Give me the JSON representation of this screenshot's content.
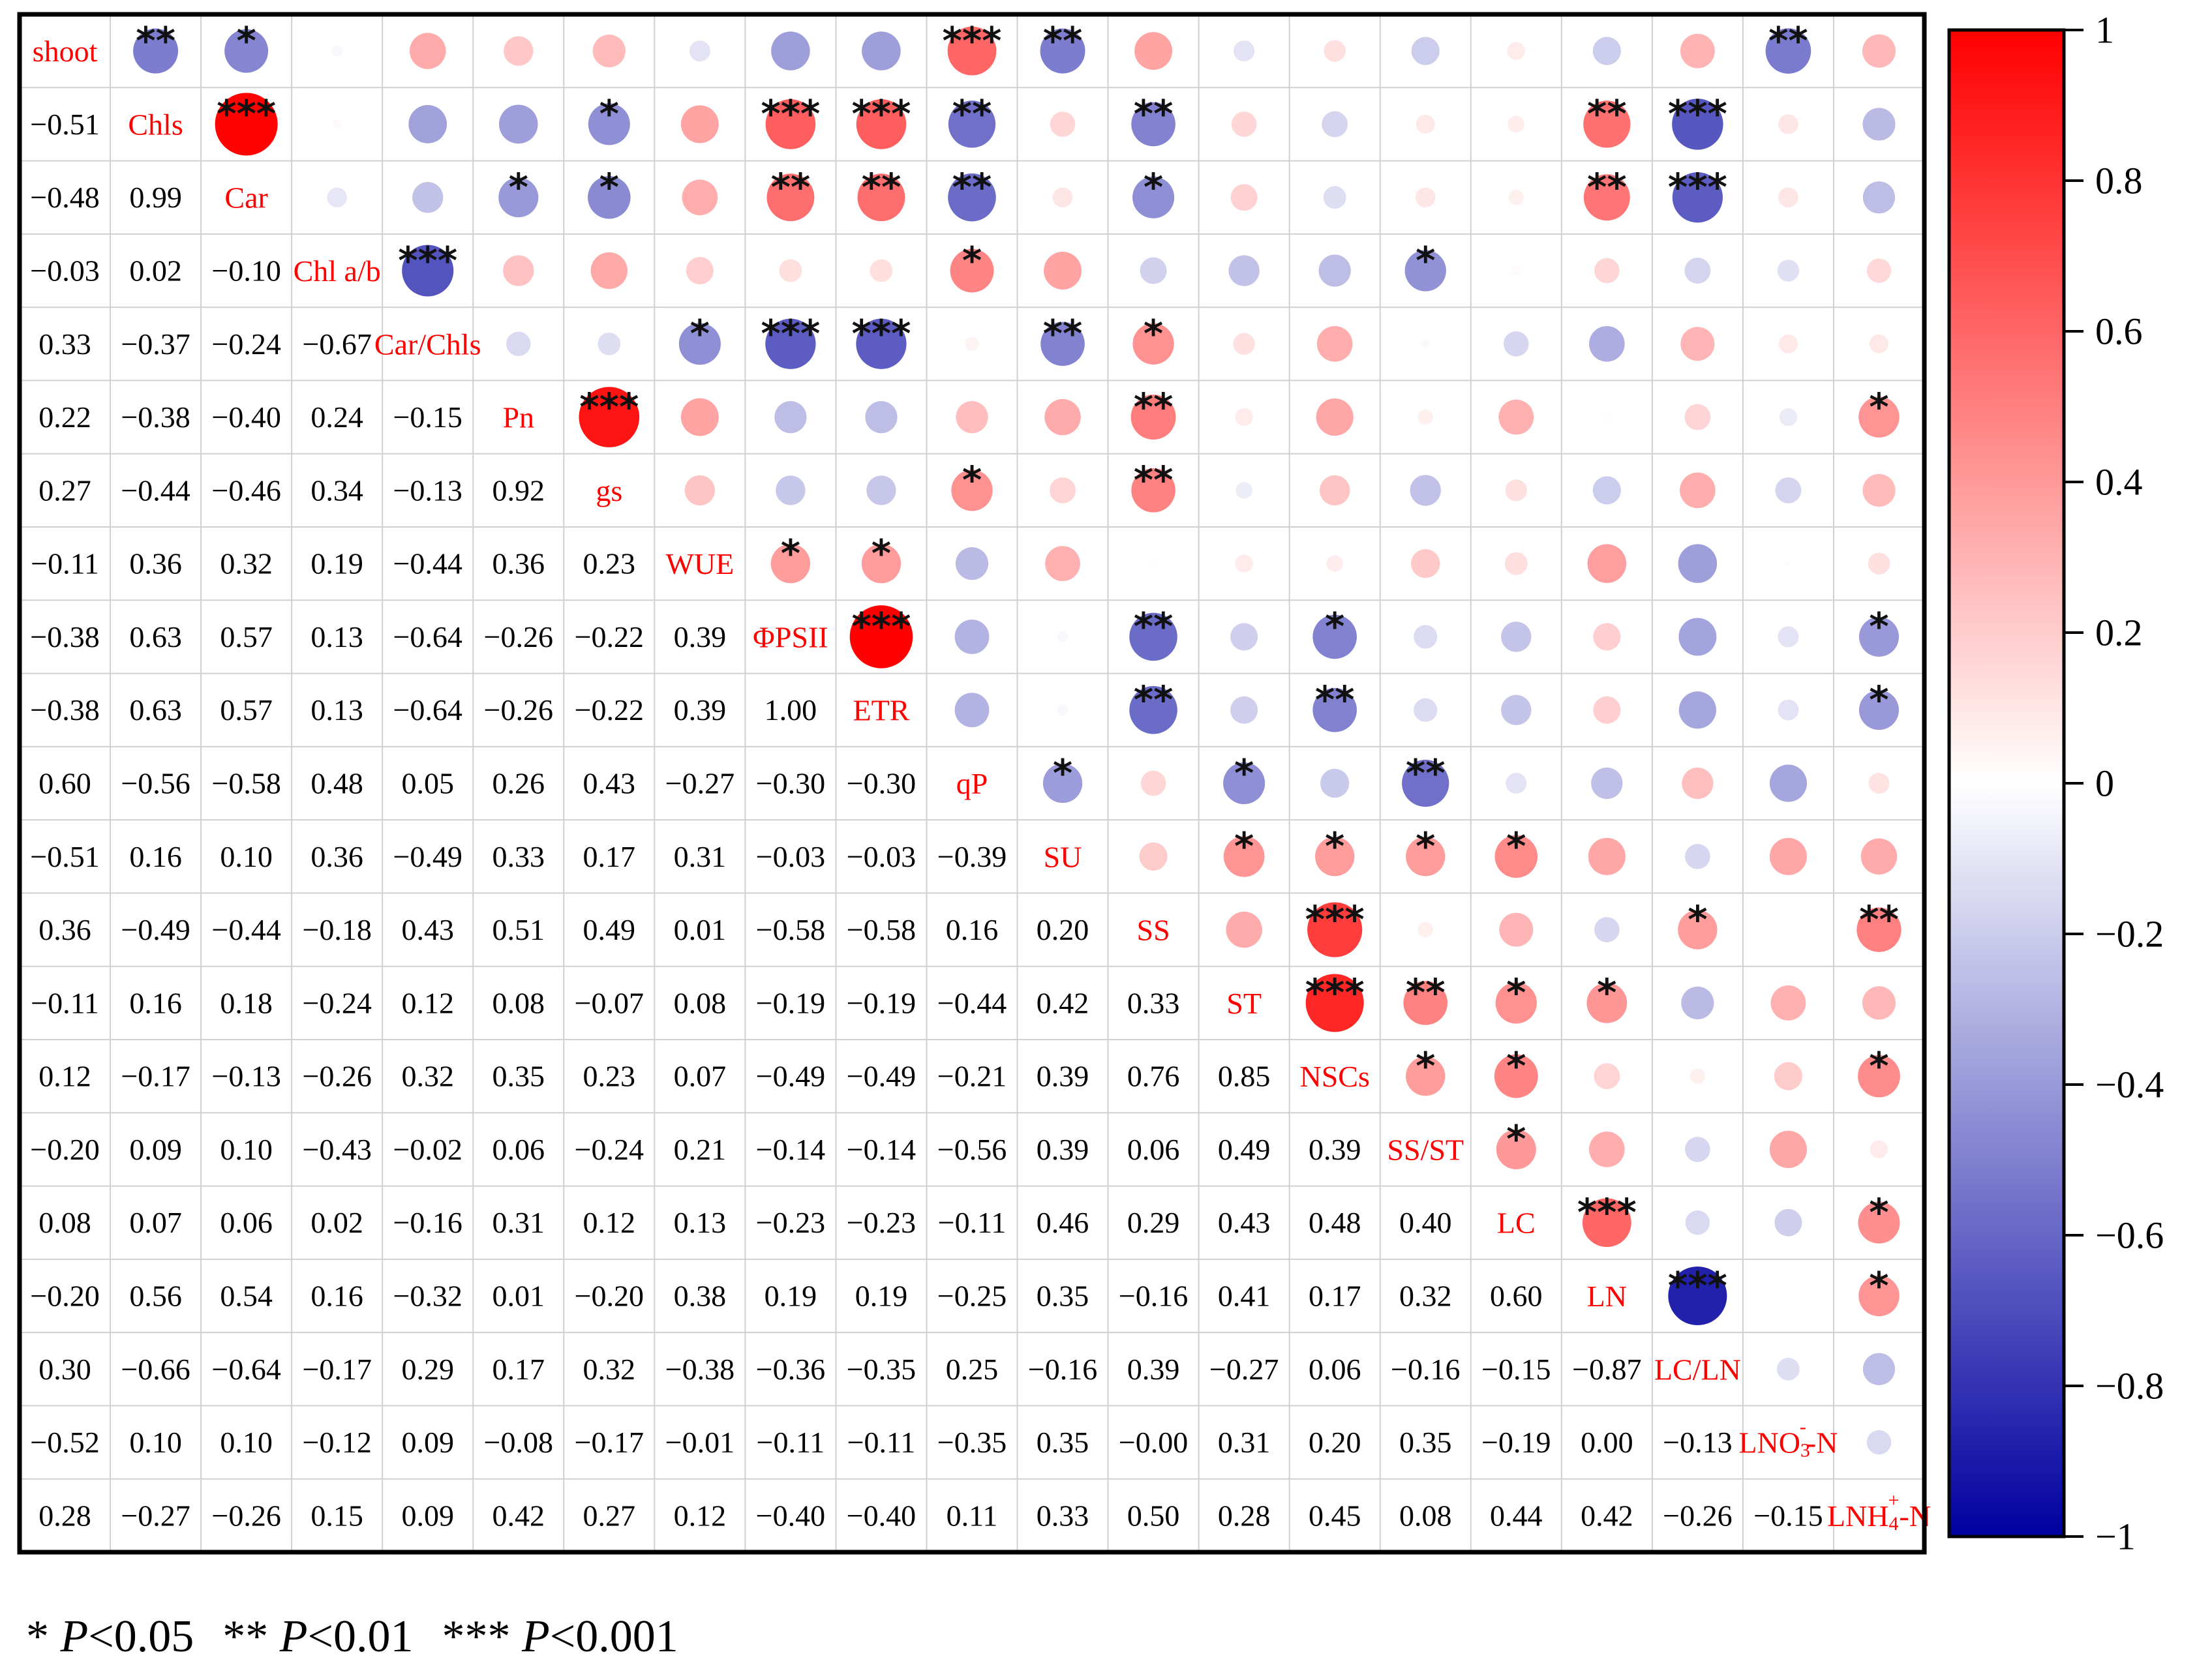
{
  "chart_data": {
    "type": "heatmap",
    "title": "",
    "variables": [
      "shoot",
      "Chls",
      "Car",
      "Chl a/b",
      "Car/Chls",
      "Pn",
      "gs",
      "WUE",
      "ΦPSII",
      "ETR",
      "qP",
      "SU",
      "SS",
      "ST",
      "NSCs",
      "SS/ST",
      "LC",
      "LN",
      "LC/LN",
      "LNO3⁻-N",
      "LNH4⁺-N"
    ],
    "variable_labels": [
      {
        "main": "shoot"
      },
      {
        "main": "Chls"
      },
      {
        "main": "Car"
      },
      {
        "main": "Chl a/b"
      },
      {
        "main": "Car/Chls"
      },
      {
        "main": "Pn"
      },
      {
        "main": "gs"
      },
      {
        "main": "WUE"
      },
      {
        "main": "ΦPSII"
      },
      {
        "main": "ETR"
      },
      {
        "main": "qP"
      },
      {
        "main": "SU"
      },
      {
        "main": "SS"
      },
      {
        "main": "ST"
      },
      {
        "main": "NSCs"
      },
      {
        "main": "SS/ST"
      },
      {
        "main": "LC"
      },
      {
        "main": "LN"
      },
      {
        "main": "LC/LN"
      },
      {
        "main": "LNO",
        "sub": "3",
        "sup": "-",
        "tail": "-N"
      },
      {
        "main": "LNH",
        "sub": "4",
        "sup": "+",
        "tail": "-N"
      }
    ],
    "lower_values": [
      [],
      [
        "−0.51"
      ],
      [
        "−0.48",
        "0.99"
      ],
      [
        "−0.03",
        "0.02",
        "−0.10"
      ],
      [
        "0.33",
        "−0.37",
        "−0.24",
        "−0.67"
      ],
      [
        "0.22",
        "−0.38",
        "−0.40",
        "0.24",
        "−0.15"
      ],
      [
        "0.27",
        "−0.44",
        "−0.46",
        "0.34",
        "−0.13",
        "0.92"
      ],
      [
        "−0.11",
        "0.36",
        "0.32",
        "0.19",
        "−0.44",
        "0.36",
        "0.23"
      ],
      [
        "−0.38",
        "0.63",
        "0.57",
        "0.13",
        "−0.64",
        "−0.26",
        "−0.22",
        "0.39"
      ],
      [
        "−0.38",
        "0.63",
        "0.57",
        "0.13",
        "−0.64",
        "−0.26",
        "−0.22",
        "0.39",
        "1.00"
      ],
      [
        "0.60",
        "−0.56",
        "−0.58",
        "0.48",
        "0.05",
        "0.26",
        "0.43",
        "−0.27",
        "−0.30",
        "−0.30"
      ],
      [
        "−0.51",
        "0.16",
        "0.10",
        "0.36",
        "−0.49",
        "0.33",
        "0.17",
        "0.31",
        "−0.03",
        "−0.03",
        "−0.39"
      ],
      [
        "0.36",
        "−0.49",
        "−0.44",
        "−0.18",
        "0.43",
        "0.51",
        "0.49",
        "0.01",
        "−0.58",
        "−0.58",
        "0.16",
        "0.20"
      ],
      [
        "−0.11",
        "0.16",
        "0.18",
        "−0.24",
        "0.12",
        "0.08",
        "−0.07",
        "0.08",
        "−0.19",
        "−0.19",
        "−0.44",
        "0.42",
        "0.33"
      ],
      [
        "0.12",
        "−0.17",
        "−0.13",
        "−0.26",
        "0.32",
        "0.35",
        "0.23",
        "0.07",
        "−0.49",
        "−0.49",
        "−0.21",
        "0.39",
        "0.76",
        "0.85"
      ],
      [
        "−0.20",
        "0.09",
        "0.10",
        "−0.43",
        "−0.02",
        "0.06",
        "−0.24",
        "0.21",
        "−0.14",
        "−0.14",
        "−0.56",
        "0.39",
        "0.06",
        "0.49",
        "0.39"
      ],
      [
        "0.08",
        "0.07",
        "0.06",
        "0.02",
        "−0.16",
        "0.31",
        "0.12",
        "0.13",
        "−0.23",
        "−0.23",
        "−0.11",
        "0.46",
        "0.29",
        "0.43",
        "0.48",
        "0.40"
      ],
      [
        "−0.20",
        "0.56",
        "0.54",
        "0.16",
        "−0.32",
        "0.01",
        "−0.20",
        "0.38",
        "0.19",
        "0.19",
        "−0.25",
        "0.35",
        "−0.16",
        "0.41",
        "0.17",
        "0.32",
        "0.60"
      ],
      [
        "0.30",
        "−0.66",
        "−0.64",
        "−0.17",
        "0.29",
        "0.17",
        "0.32",
        "−0.38",
        "−0.36",
        "−0.35",
        "0.25",
        "−0.16",
        "0.39",
        "−0.27",
        "0.06",
        "−0.16",
        "−0.15",
        "−0.87"
      ],
      [
        "−0.52",
        "0.10",
        "0.10",
        "−0.12",
        "0.09",
        "−0.08",
        "−0.17",
        "−0.01",
        "−0.11",
        "−0.11",
        "−0.35",
        "0.35",
        "−0.00",
        "0.31",
        "0.20",
        "0.35",
        "−0.19",
        "0.00",
        "−0.13"
      ],
      [
        "0.28",
        "−0.27",
        "−0.26",
        "0.15",
        "0.09",
        "0.42",
        "0.27",
        "0.12",
        "−0.40",
        "−0.40",
        "0.11",
        "0.33",
        "0.50",
        "0.28",
        "0.45",
        "0.08",
        "0.44",
        "0.42",
        "−0.26",
        "−0.15"
      ]
    ],
    "significance_upper": [
      [
        "",
        "**",
        "*",
        "",
        "",
        "",
        "",
        "",
        "",
        "",
        "***",
        "**",
        "",
        "",
        "",
        "",
        "",
        "",
        "",
        "**",
        ""
      ],
      [
        "",
        "",
        "***",
        "",
        "",
        "",
        "*",
        "",
        "***",
        "***",
        "**",
        "",
        "**",
        "",
        "",
        "",
        "",
        "**",
        "***",
        "",
        ""
      ],
      [
        "",
        "",
        "",
        "",
        "",
        "*",
        "*",
        "",
        "**",
        "**",
        "**",
        "",
        "*",
        "",
        "",
        "",
        "",
        "**",
        "***",
        "",
        ""
      ],
      [
        "",
        "",
        "",
        "",
        "***",
        "",
        "",
        "",
        "",
        "",
        "*",
        "",
        "",
        "",
        "",
        "*",
        "",
        "",
        "",
        "",
        ""
      ],
      [
        "",
        "",
        "",
        "",
        "",
        "",
        "",
        "*",
        "***",
        "***",
        "",
        "**",
        "*",
        "",
        "",
        "",
        "",
        "",
        "",
        "",
        ""
      ],
      [
        "",
        "",
        "",
        "",
        "",
        "",
        "***",
        "",
        "",
        "",
        "",
        "",
        "**",
        "",
        "",
        "",
        "",
        "",
        "",
        "",
        "*"
      ],
      [
        "",
        "",
        "",
        "",
        "",
        "",
        "",
        "",
        "",
        "",
        "*",
        "",
        "**",
        "",
        "",
        "",
        "",
        "",
        "",
        "",
        ""
      ],
      [
        "",
        "",
        "",
        "",
        "",
        "",
        "",
        "",
        "*",
        "*",
        "",
        "",
        "",
        "",
        "",
        "",
        "",
        "",
        "",
        "",
        ""
      ],
      [
        "",
        "",
        "",
        "",
        "",
        "",
        "",
        "",
        "",
        "***",
        "",
        "",
        "**",
        "",
        "*",
        "",
        "",
        "",
        "",
        "",
        "*"
      ],
      [
        "",
        "",
        "",
        "",
        "",
        "",
        "",
        "",
        "",
        "",
        "",
        "",
        "**",
        "",
        "**",
        "",
        "",
        "",
        "",
        "",
        "*"
      ],
      [
        "",
        "",
        "",
        "",
        "",
        "",
        "",
        "",
        "",
        "",
        "",
        "*",
        "",
        "*",
        "",
        "**",
        "",
        "",
        "",
        "",
        ""
      ],
      [
        "",
        "",
        "",
        "",
        "",
        "",
        "",
        "",
        "",
        "",
        "",
        "",
        "",
        "*",
        "*",
        "*",
        "*",
        "",
        "",
        "",
        ""
      ],
      [
        "",
        "",
        "",
        "",
        "",
        "",
        "",
        "",
        "",
        "",
        "",
        "",
        "",
        "",
        "***",
        "",
        "",
        "",
        "*",
        "",
        "**"
      ],
      [
        "",
        "",
        "",
        "",
        "",
        "",
        "",
        "",
        "",
        "",
        "",
        "",
        "",
        "",
        "***",
        "**",
        "*",
        "*",
        "",
        "",
        ""
      ],
      [
        "",
        "",
        "",
        "",
        "",
        "",
        "",
        "",
        "",
        "",
        "",
        "",
        "",
        "",
        "",
        "*",
        "*",
        "",
        "",
        "",
        "*"
      ],
      [
        "",
        "",
        "",
        "",
        "",
        "",
        "",
        "",
        "",
        "",
        "",
        "",
        "",
        "",
        "",
        "",
        "*",
        "",
        "",
        "",
        ""
      ],
      [
        "",
        "",
        "",
        "",
        "",
        "",
        "",
        "",
        "",
        "",
        "",
        "",
        "",
        "",
        "",
        "",
        "",
        "***",
        "",
        "",
        "*"
      ],
      [
        "",
        "",
        "",
        "",
        "",
        "",
        "",
        "",
        "",
        "",
        "",
        "",
        "",
        "",
        "",
        "",
        "",
        "",
        "***",
        "",
        "*"
      ],
      [
        "",
        "",
        "",
        "",
        "",
        "",
        "",
        "",
        "",
        "",
        "",
        "",
        "",
        "",
        "",
        "",
        "",
        "",
        "",
        "",
        ""
      ],
      [
        "",
        "",
        "",
        "",
        "",
        "",
        "",
        "",
        "",
        "",
        "",
        "",
        "",
        "",
        "",
        "",
        "",
        "",
        "",
        "",
        ""
      ],
      [
        "",
        "",
        "",
        "",
        "",
        "",
        "",
        "",
        "",
        "",
        "",
        "",
        "",
        "",
        "",
        "",
        "",
        "",
        "",
        "",
        ""
      ]
    ],
    "colorbar": {
      "min": -1,
      "max": 1,
      "ticks": [
        {
          "value": 1,
          "label": "1"
        },
        {
          "value": 0.8,
          "label": "0.8"
        },
        {
          "value": 0.6,
          "label": "0.6"
        },
        {
          "value": 0.4,
          "label": "0.4"
        },
        {
          "value": 0.2,
          "label": "0.2"
        },
        {
          "value": 0,
          "label": "0"
        },
        {
          "value": -0.2,
          "label": "−0.2"
        },
        {
          "value": -0.4,
          "label": "−0.4"
        },
        {
          "value": -0.6,
          "label": "−0.6"
        },
        {
          "value": -0.8,
          "label": "−0.8"
        },
        {
          "value": -1,
          "label": "−1"
        }
      ],
      "colors": {
        "negative": "#0000a0",
        "zero": "#ffffff",
        "positive": "#ff0000"
      }
    },
    "label_color": "#ff0000",
    "grid": true
  },
  "legend": {
    "items": [
      {
        "stars": "*",
        "p": "P",
        "threshold": "<0.05"
      },
      {
        "stars": "**",
        "p": "P",
        "threshold": "<0.01"
      },
      {
        "stars": "***",
        "p": "P",
        "threshold": "<0.001"
      }
    ]
  }
}
